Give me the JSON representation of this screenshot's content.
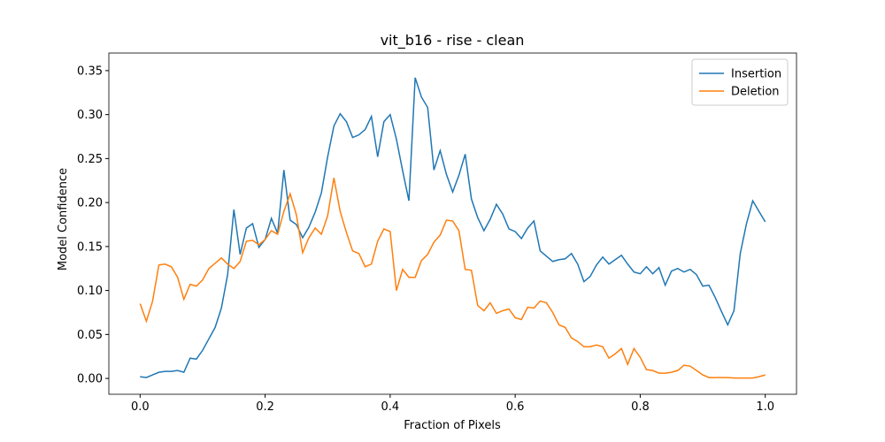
{
  "chart_data": {
    "type": "line",
    "title": "vit_b16 - rise - clean",
    "xlabel": "Fraction of Pixels",
    "ylabel": "Model Confidence",
    "x": [
      0,
      0.01,
      0.02,
      0.03,
      0.04,
      0.05,
      0.06,
      0.07,
      0.08,
      0.09,
      0.1,
      0.11,
      0.12,
      0.13,
      0.14,
      0.15,
      0.16,
      0.17,
      0.18,
      0.19,
      0.2,
      0.21,
      0.22,
      0.23,
      0.24,
      0.25,
      0.26,
      0.27,
      0.28,
      0.29,
      0.3,
      0.31,
      0.32,
      0.33,
      0.34,
      0.35,
      0.36,
      0.37,
      0.38,
      0.39,
      0.4,
      0.41,
      0.42,
      0.43,
      0.44,
      0.45,
      0.46,
      0.47,
      0.48,
      0.49,
      0.5,
      0.51,
      0.52,
      0.53,
      0.54,
      0.55,
      0.56,
      0.57,
      0.58,
      0.59,
      0.6,
      0.61,
      0.62,
      0.63,
      0.64,
      0.65,
      0.66,
      0.67,
      0.68,
      0.69,
      0.7,
      0.71,
      0.72,
      0.73,
      0.74,
      0.75,
      0.76,
      0.77,
      0.78,
      0.79,
      0.8,
      0.81,
      0.82,
      0.83,
      0.84,
      0.85,
      0.86,
      0.87,
      0.88,
      0.89,
      0.9,
      0.91,
      0.92,
      0.93,
      0.94,
      0.95,
      0.96,
      0.97,
      0.98,
      0.99,
      1
    ],
    "series": [
      {
        "name": "Insertion",
        "color": "#1f77b4",
        "values": [
          0.002,
          0.001,
          0.004,
          0.007,
          0.008,
          0.008,
          0.009,
          0.007,
          0.023,
          0.022,
          0.032,
          0.045,
          0.058,
          0.08,
          0.118,
          0.192,
          0.141,
          0.171,
          0.176,
          0.149,
          0.158,
          0.182,
          0.165,
          0.237,
          0.18,
          0.175,
          0.16,
          0.172,
          0.189,
          0.211,
          0.252,
          0.287,
          0.301,
          0.292,
          0.274,
          0.277,
          0.283,
          0.298,
          0.252,
          0.292,
          0.3,
          0.272,
          0.236,
          0.202,
          0.342,
          0.32,
          0.308,
          0.237,
          0.259,
          0.232,
          0.212,
          0.231,
          0.255,
          0.204,
          0.183,
          0.168,
          0.181,
          0.198,
          0.187,
          0.17,
          0.167,
          0.159,
          0.171,
          0.179,
          0.145,
          0.139,
          0.133,
          0.135,
          0.136,
          0.142,
          0.13,
          0.11,
          0.116,
          0.129,
          0.138,
          0.13,
          0.135,
          0.14,
          0.13,
          0.121,
          0.119,
          0.127,
          0.119,
          0.126,
          0.106,
          0.122,
          0.125,
          0.121,
          0.124,
          0.118,
          0.105,
          0.106,
          0.092,
          0.076,
          0.061,
          0.077,
          0.142,
          0.176,
          0.202,
          0.19,
          0.178
        ]
      },
      {
        "name": "Deletion",
        "color": "#ff7f0e",
        "values": [
          0.085,
          0.065,
          0.088,
          0.129,
          0.13,
          0.127,
          0.115,
          0.09,
          0.107,
          0.105,
          0.112,
          0.125,
          0.131,
          0.137,
          0.13,
          0.125,
          0.133,
          0.156,
          0.157,
          0.152,
          0.158,
          0.168,
          0.164,
          0.19,
          0.21,
          0.186,
          0.143,
          0.16,
          0.171,
          0.164,
          0.185,
          0.228,
          0.19,
          0.166,
          0.145,
          0.142,
          0.127,
          0.13,
          0.156,
          0.17,
          0.167,
          0.1,
          0.124,
          0.115,
          0.115,
          0.134,
          0.141,
          0.155,
          0.163,
          0.18,
          0.179,
          0.168,
          0.124,
          0.123,
          0.083,
          0.077,
          0.086,
          0.074,
          0.077,
          0.079,
          0.069,
          0.067,
          0.081,
          0.08,
          0.088,
          0.086,
          0.075,
          0.061,
          0.058,
          0.046,
          0.042,
          0.036,
          0.036,
          0.038,
          0.036,
          0.023,
          0.028,
          0.034,
          0.016,
          0.034,
          0.024,
          0.01,
          0.009,
          0.006,
          0.006,
          0.007,
          0.009,
          0.015,
          0.014,
          0.009,
          0.004,
          0.001,
          0.001,
          0.001,
          0.001,
          0.0005,
          0.0005,
          0.0005,
          0.0005,
          0.002,
          0.004
        ]
      }
    ],
    "xlim": [
      -0.05,
      1.05
    ],
    "ylim": [
      -0.018,
      0.37
    ],
    "xticks": [
      {
        "value": 0,
        "label": "0.0"
      },
      0.2,
      0.4,
      0.6,
      0.8,
      {
        "value": 1,
        "label": "1.0"
      }
    ],
    "yticks": [
      {
        "value": 0,
        "label": "0.00"
      },
      0.05,
      {
        "value": 0.1,
        "label": "0.10"
      },
      0.15,
      {
        "value": 0.2,
        "label": "0.20"
      },
      0.25,
      {
        "value": 0.3,
        "label": "0.30"
      },
      0.35
    ],
    "legend": "upper right",
    "grid": false
  }
}
